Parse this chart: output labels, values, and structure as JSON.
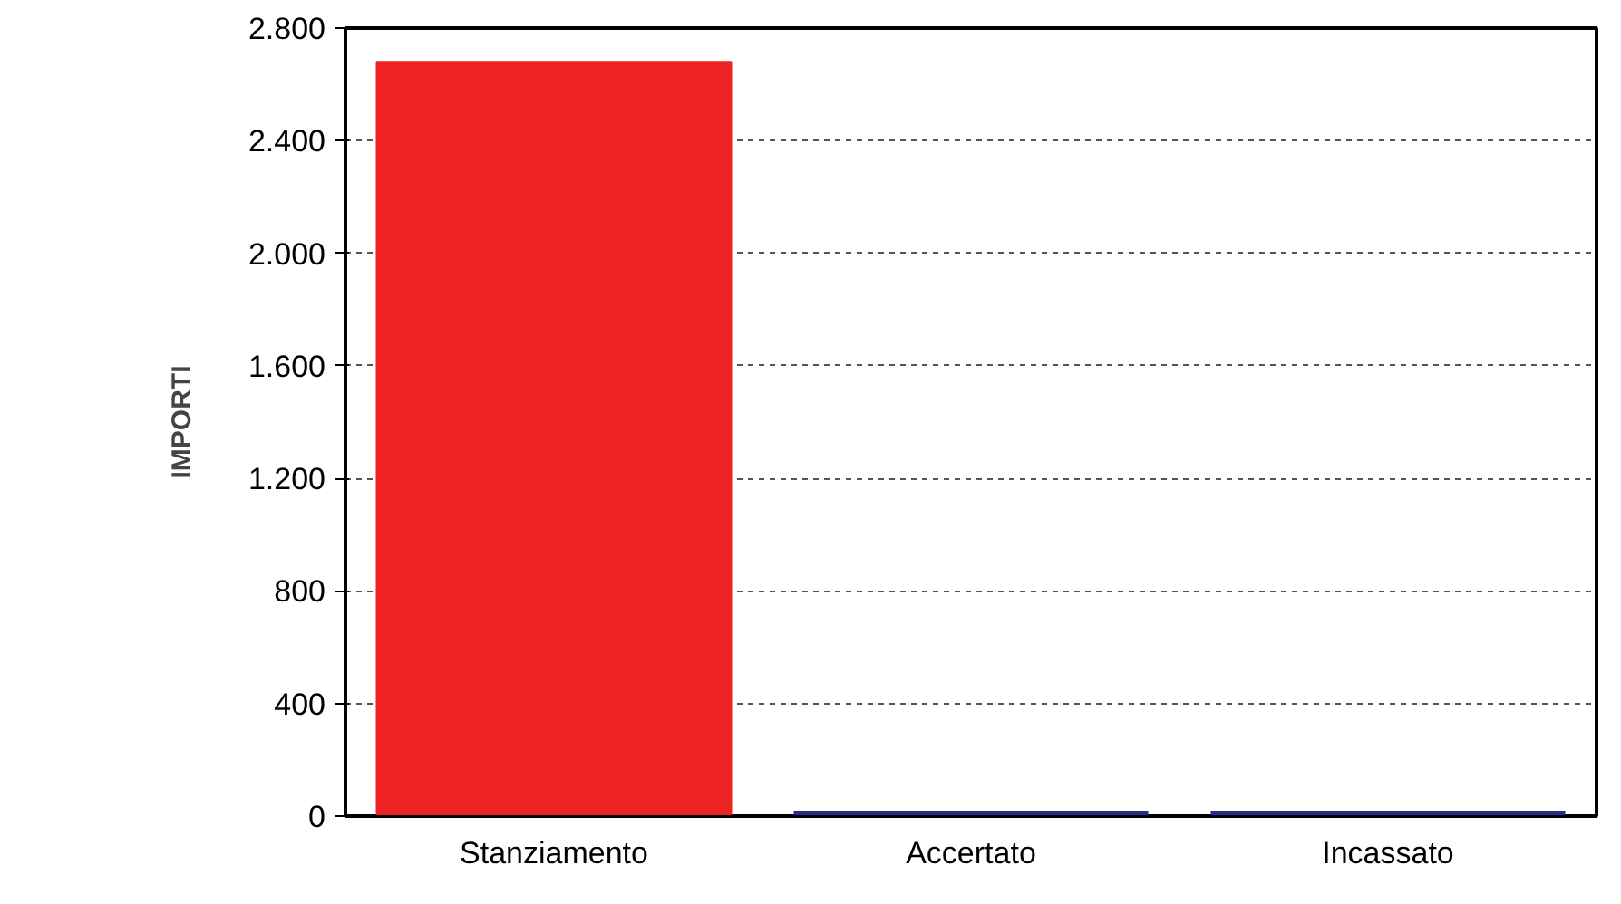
{
  "chart_data": {
    "type": "bar",
    "ylabel": "IMPORTI",
    "categories": [
      "Stanziamento",
      "Accertato",
      "Incassato"
    ],
    "values": [
      2680,
      0,
      0
    ],
    "colors": [
      "#ee2222",
      "#2a2a88",
      "#2a2a88"
    ],
    "ylim": [
      0,
      2800
    ],
    "yticks": [
      0,
      400,
      800,
      {
        "value": 1200,
        "label": "1.200"
      },
      {
        "value": 1600,
        "label": "1.600"
      },
      {
        "value": 2000,
        "label": "2.000"
      },
      {
        "value": 2400,
        "label": "2.400"
      },
      {
        "value": 2800,
        "label": "2.800"
      }
    ],
    "grid": "y"
  }
}
